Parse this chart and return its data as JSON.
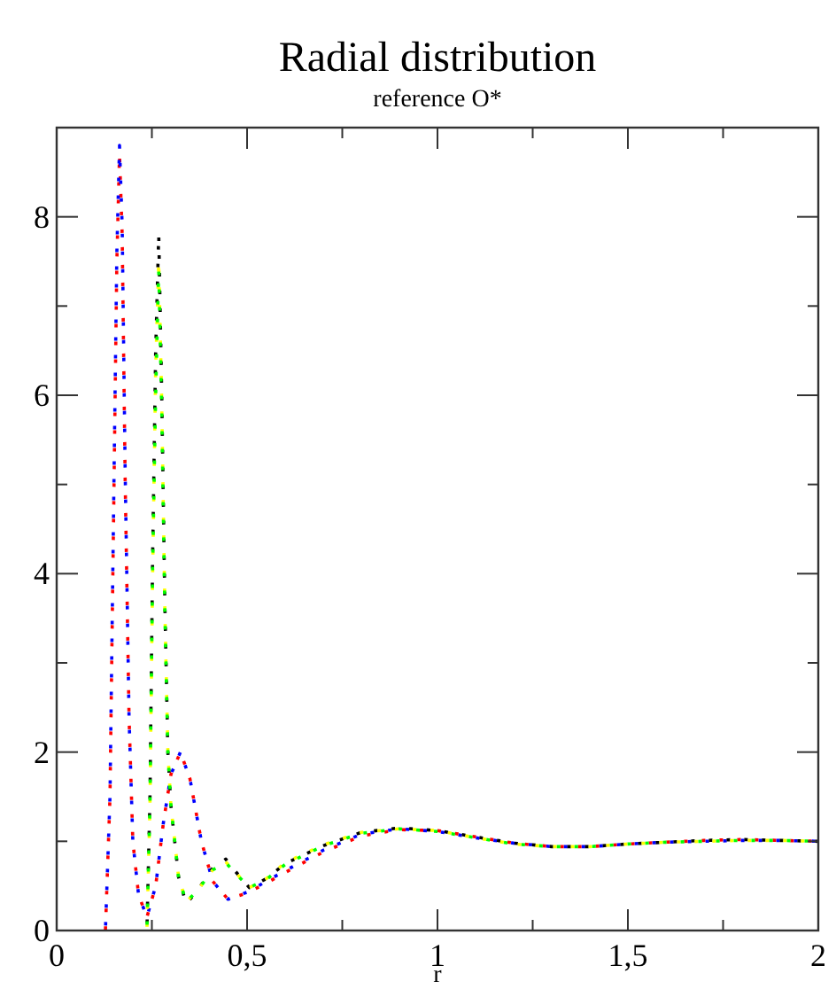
{
  "chart_data": {
    "type": "line",
    "title": "Radial distribution",
    "subtitle": "reference O*",
    "xlabel": "r",
    "xlim": [
      0,
      2
    ],
    "ylim": [
      0,
      9
    ],
    "xticks": [
      0,
      {
        "value": 0.25,
        "label": null
      },
      {
        "value": 0.5,
        "label": "0,5"
      },
      {
        "value": 0.75,
        "label": null
      },
      1,
      {
        "value": 1.25,
        "label": null
      },
      {
        "value": 1.5,
        "label": "1,5"
      },
      {
        "value": 1.75,
        "label": null
      },
      2
    ],
    "yticks": [
      0,
      {
        "value": 1,
        "label": null
      },
      2,
      {
        "value": 3,
        "label": null
      },
      4,
      {
        "value": 5,
        "label": null
      },
      6,
      {
        "value": 7,
        "label": null
      },
      8
    ],
    "grid": false,
    "marker": "none",
    "line_style": "dotted",
    "series": [
      {
        "color": "#ff0000",
        "x": [
          0.128,
          0.14,
          0.15,
          0.158,
          0.165,
          0.172,
          0.18,
          0.19,
          0.2,
          0.215,
          0.237,
          0.26,
          0.28,
          0.3,
          0.325,
          0.35,
          0.38,
          0.41,
          0.45,
          0.5,
          0.55,
          0.6,
          0.7,
          0.8,
          0.9,
          1.0,
          1.1,
          1.2,
          1.3,
          1.4,
          1.5,
          1.6,
          1.7,
          1.8,
          1.9,
          2.0
        ],
        "values": [
          0,
          1.5,
          4.8,
          7.5,
          8.7,
          7.8,
          5.0,
          2.4,
          1.0,
          0.4,
          0.15,
          0.5,
          1.2,
          1.75,
          2.0,
          1.7,
          1.0,
          0.55,
          0.35,
          0.42,
          0.53,
          0.65,
          0.88,
          1.06,
          1.13,
          1.12,
          1.05,
          0.98,
          0.94,
          0.94,
          0.97,
          0.99,
          1.01,
          1.02,
          1.01,
          1.0
        ]
      },
      {
        "color": "#0000ff",
        "x": [
          0.128,
          0.14,
          0.15,
          0.158,
          0.165,
          0.172,
          0.18,
          0.19,
          0.2,
          0.215,
          0.237,
          0.26,
          0.28,
          0.3,
          0.325,
          0.35,
          0.38,
          0.41,
          0.45,
          0.5,
          0.55,
          0.6,
          0.7,
          0.8,
          0.9,
          1.0,
          1.1,
          1.2,
          1.3,
          1.4,
          1.5,
          1.6,
          1.7,
          1.8,
          1.9,
          2.0
        ],
        "values": [
          0,
          1.5,
          4.9,
          7.6,
          8.8,
          7.9,
          5.1,
          2.4,
          1.0,
          0.4,
          0.15,
          0.5,
          1.2,
          1.75,
          2.0,
          1.7,
          1.0,
          0.55,
          0.35,
          0.43,
          0.55,
          0.67,
          0.9,
          1.08,
          1.14,
          1.11,
          1.04,
          0.98,
          0.94,
          0.94,
          0.97,
          0.99,
          1.0,
          1.01,
          1.01,
          1.0
        ]
      },
      {
        "color": "#000000",
        "x": [
          0.22,
          0.237,
          0.245,
          0.252,
          0.26,
          0.268,
          0.276,
          0.284,
          0.292,
          0.3,
          0.32,
          0.34,
          0.37,
          0.41,
          0.444,
          0.47,
          0.506,
          0.55,
          0.6,
          0.7,
          0.8,
          0.9,
          1.0,
          1.1,
          1.2,
          1.3,
          1.4,
          1.5,
          1.6,
          1.7,
          1.8,
          1.9,
          2.0
        ],
        "values": [
          0,
          0,
          1.5,
          4.2,
          6.5,
          7.8,
          6.0,
          3.7,
          2.0,
          1.4,
          0.6,
          0.3,
          0.45,
          0.7,
          0.8,
          0.66,
          0.48,
          0.58,
          0.75,
          0.95,
          1.1,
          1.15,
          1.12,
          1.05,
          0.98,
          0.94,
          0.94,
          0.97,
          0.99,
          1.01,
          1.02,
          1.01,
          1.0
        ]
      },
      {
        "color": "#ffff00",
        "x": [
          0.22,
          0.237,
          0.245,
          0.252,
          0.26,
          0.268,
          0.276,
          0.284,
          0.292,
          0.3,
          0.32,
          0.34,
          0.37,
          0.41,
          0.444,
          0.47,
          0.506,
          0.55,
          0.6,
          0.7,
          0.8,
          0.9,
          1.0,
          1.1,
          1.2,
          1.3,
          1.4,
          1.5,
          1.6,
          1.7,
          1.8,
          1.9,
          2.0
        ],
        "values": [
          0,
          0,
          1.4,
          4.0,
          6.3,
          7.5,
          5.9,
          3.6,
          2.0,
          1.4,
          0.6,
          0.32,
          0.45,
          0.68,
          0.77,
          0.65,
          0.48,
          0.58,
          0.76,
          0.96,
          1.1,
          1.14,
          1.12,
          1.04,
          0.97,
          0.94,
          0.94,
          0.97,
          0.99,
          1.0,
          1.01,
          1.01,
          1.0
        ]
      },
      {
        "color": "#00ff00",
        "x": [
          0.22,
          0.237,
          0.245,
          0.252,
          0.26,
          0.268,
          0.276,
          0.284,
          0.292,
          0.3,
          0.32,
          0.34,
          0.37,
          0.41,
          0.444,
          0.47,
          0.506,
          0.55,
          0.6,
          0.7,
          0.8,
          0.9,
          1.0,
          1.1,
          1.2,
          1.3,
          1.4,
          1.5,
          1.6,
          1.7,
          1.8,
          1.9,
          2.0
        ],
        "values": [
          0,
          0,
          1.4,
          4.1,
          6.0,
          7.4,
          5.8,
          3.6,
          2.0,
          1.4,
          0.6,
          0.32,
          0.45,
          0.68,
          0.76,
          0.64,
          0.48,
          0.57,
          0.74,
          0.95,
          1.09,
          1.14,
          1.11,
          1.04,
          0.97,
          0.94,
          0.94,
          0.97,
          0.99,
          1.0,
          1.01,
          1.01,
          1.0
        ]
      }
    ]
  }
}
